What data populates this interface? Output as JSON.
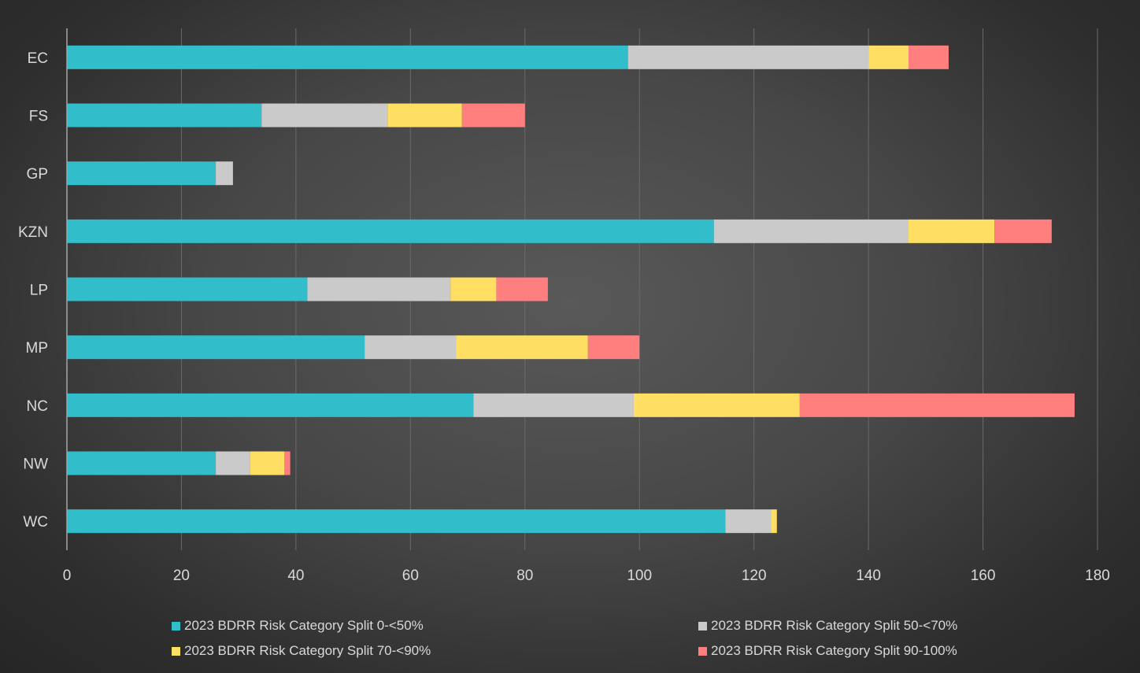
{
  "chart_data": {
    "type": "bar",
    "orientation": "horizontal",
    "stacked": true,
    "categories": [
      "EC",
      "FS",
      "GP",
      "KZN",
      "LP",
      "MP",
      "NC",
      "NW",
      "WC"
    ],
    "series": [
      {
        "name": "2023 BDRR Risk Category Split 0-<50%",
        "color": "#31bdc9",
        "values": [
          98,
          34,
          26,
          113,
          42,
          52,
          71,
          26,
          115
        ]
      },
      {
        "name": "2023 BDRR Risk Category Split 50-<70%",
        "color": "#cacaca",
        "values": [
          42,
          22,
          3,
          34,
          25,
          16,
          28,
          6,
          8
        ]
      },
      {
        "name": "2023 BDRR Risk Category Split 70-<90%",
        "color": "#ffdf63",
        "values": [
          7,
          13,
          0,
          15,
          8,
          23,
          29,
          6,
          1
        ]
      },
      {
        "name": "2023 BDRR Risk Category Split 90-100%",
        "color": "#ff7f7f",
        "values": [
          7,
          11,
          0,
          10,
          9,
          9,
          48,
          1,
          0
        ]
      }
    ],
    "xlim": [
      0,
      180
    ],
    "xticks": [
      0,
      20,
      40,
      60,
      80,
      100,
      120,
      140,
      160,
      180
    ],
    "grid": "vertical",
    "legend": "bottom",
    "title": "",
    "xlabel": "",
    "ylabel": ""
  }
}
